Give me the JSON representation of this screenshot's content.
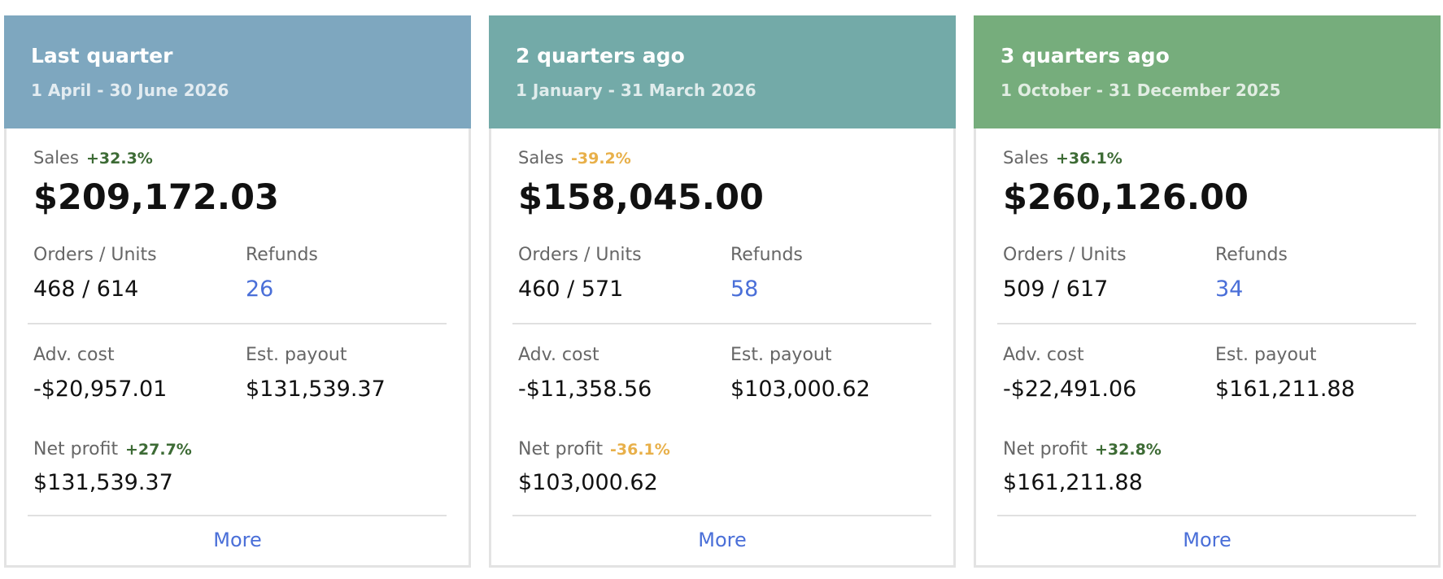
{
  "cards": [
    {
      "title": "Last quarter",
      "date_range": "1 April - 30 June 2026",
      "sales_label": "Sales",
      "sales_change": "+32.3%",
      "sales": "$209,172.03",
      "orders_units_label": "Orders / Units",
      "orders_units": "468 / 614",
      "refunds_label": "Refunds",
      "refunds": "26",
      "adv_cost_label": "Adv. cost",
      "adv_cost": "-$20,957.01",
      "est_payout_label": "Est. payout",
      "est_payout": "$131,539.37",
      "net_profit_label": "Net profit",
      "net_profit_change": "+27.7%",
      "net_profit": "$131,539.37",
      "more": "More",
      "color": "#7ea7bf"
    },
    {
      "title": "2 quarters ago",
      "date_range": "1 January - 31 March 2026",
      "sales_label": "Sales",
      "sales_change": "-39.2%",
      "sales": "$158,045.00",
      "orders_units_label": "Orders / Units",
      "orders_units": "460 / 571",
      "refunds_label": "Refunds",
      "refunds": "58",
      "adv_cost_label": "Adv. cost",
      "adv_cost": "-$11,358.56",
      "est_payout_label": "Est. payout",
      "est_payout": "$103,000.62",
      "net_profit_label": "Net profit",
      "net_profit_change": "-36.1%",
      "net_profit": "$103,000.62",
      "more": "More",
      "color": "#73aaa8"
    },
    {
      "title": "3 quarters ago",
      "date_range": "1 October - 31 December 2025",
      "sales_label": "Sales",
      "sales_change": "+36.1%",
      "sales": "$260,126.00",
      "orders_units_label": "Orders / Units",
      "orders_units": "509 / 617",
      "refunds_label": "Refunds",
      "refunds": "34",
      "adv_cost_label": "Adv. cost",
      "adv_cost": "-$22,491.06",
      "est_payout_label": "Est. payout",
      "est_payout": "$161,211.88",
      "net_profit_label": "Net profit",
      "net_profit_change": "+32.8%",
      "net_profit": "$161,211.88",
      "more": "More",
      "color": "#76ad7c"
    }
  ]
}
